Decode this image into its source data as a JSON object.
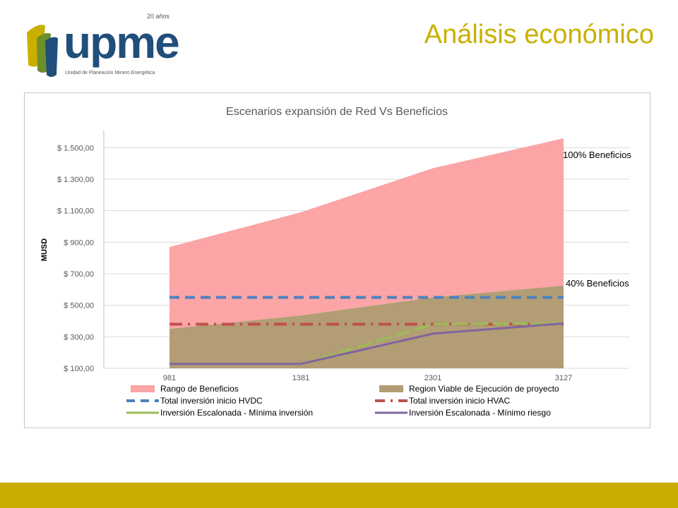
{
  "header": {
    "title": "Análisis económico",
    "logo": {
      "word": "upme",
      "years": "20 años",
      "subtitle": "Unidad de Planeación Minero Energética",
      "colors": {
        "yellow": "#c9b000",
        "green": "#6f8f2a",
        "blue": "#1f4f7a"
      }
    }
  },
  "footer": {
    "color": "#c6ad00"
  },
  "chart_data": {
    "type": "area",
    "title": "Escenarios expansión  de Red Vs Beneficios",
    "ylabel": "MUSD",
    "xlabel": "",
    "categories": [
      "981",
      "1381",
      "2301",
      "3127"
    ],
    "y_ticks": [
      "$ 100,00",
      "$ 300,00",
      "$ 500,00",
      "$ 700,00",
      "$ 900,00",
      "$ 1.100,00",
      "$ 1.300,00",
      "$ 1.500,00"
    ],
    "ylim": [
      100,
      1600
    ],
    "grid": true,
    "legend_position": "bottom",
    "annotations": [
      {
        "text": "100% Beneficios",
        "series": "Rango de Beneficios"
      },
      {
        "text": "40% Beneficios",
        "series": "Region Viable de Ejecución de proyecto"
      }
    ],
    "series": [
      {
        "name": "Rango de Beneficios",
        "kind": "band",
        "color": "#fba5a6",
        "lower": [
          350,
          435,
          550,
          625
        ],
        "upper": [
          870,
          1090,
          1370,
          1560
        ]
      },
      {
        "name": "Region Viable de Ejecución de proyecto",
        "kind": "area",
        "color": "#b39d74",
        "values": [
          350,
          435,
          550,
          625
        ]
      },
      {
        "name": "Total inversión inicio HVDC",
        "kind": "dash",
        "color": "#4f81bd",
        "values": [
          550,
          550,
          550,
          550
        ]
      },
      {
        "name": "Total inversión inicio HVAC",
        "kind": "dashdot",
        "color": "#c0504d",
        "values": [
          380,
          380,
          380,
          380
        ]
      },
      {
        "name": "Inversión Escalonada - Mínima inversión",
        "kind": "line",
        "color": "#9bbb59",
        "values": [
          null,
          125,
          380,
          385
        ]
      },
      {
        "name": "Inversión Escalonada - Mínimo riesgo",
        "kind": "line",
        "color": "#8064a2",
        "values": [
          128,
          128,
          320,
          385
        ]
      }
    ]
  }
}
